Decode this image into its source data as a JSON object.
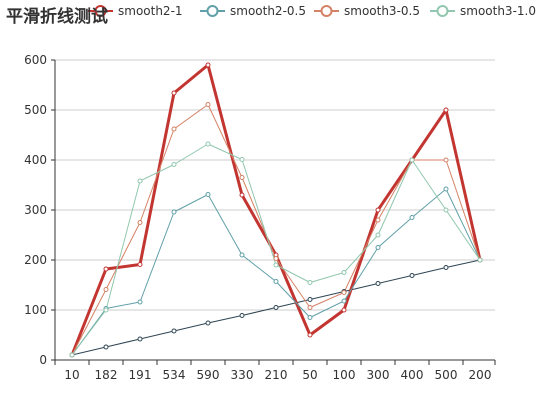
{
  "chart_data": {
    "type": "line",
    "title": "平滑折线测试",
    "categories": [
      "10",
      "182",
      "191",
      "534",
      "590",
      "330",
      "210",
      "50",
      "100",
      "300",
      "400",
      "500",
      "200"
    ],
    "ylim": [
      0,
      600
    ],
    "yticks": [
      0,
      100,
      200,
      300,
      400,
      500,
      600
    ],
    "grid": true,
    "legend_position": "top",
    "series": [
      {
        "name": "",
        "color": "#2f4554",
        "stroke_width": 1,
        "values": [
          10,
          26,
          42,
          58,
          74,
          89,
          105,
          121,
          137,
          153,
          169,
          185,
          200
        ]
      },
      {
        "name": "smooth2-1",
        "color": "#c23531",
        "stroke_width": 3,
        "values": [
          10,
          182,
          191,
          534,
          590,
          330,
          210,
          50,
          100,
          300,
          400,
          500,
          200
        ]
      },
      {
        "name": "smooth2-0.5",
        "color": "#61a0a8",
        "stroke_width": 1,
        "values": [
          10,
          103,
          116,
          296,
          331,
          210,
          157,
          85,
          118,
          225,
          285,
          342,
          200
        ]
      },
      {
        "name": "smooth3-0.5",
        "color": "#d48265",
        "stroke_width": 1,
        "values": [
          10,
          141,
          275,
          462,
          511,
          365,
          203,
          105,
          135,
          280,
          400,
          400,
          200
        ]
      },
      {
        "name": "smooth3-1.0",
        "color": "#91c7ae",
        "stroke_width": 1,
        "values": [
          10,
          100,
          358,
          391,
          432,
          401,
          190,
          155,
          175,
          250,
          400,
          300,
          200
        ]
      }
    ]
  }
}
